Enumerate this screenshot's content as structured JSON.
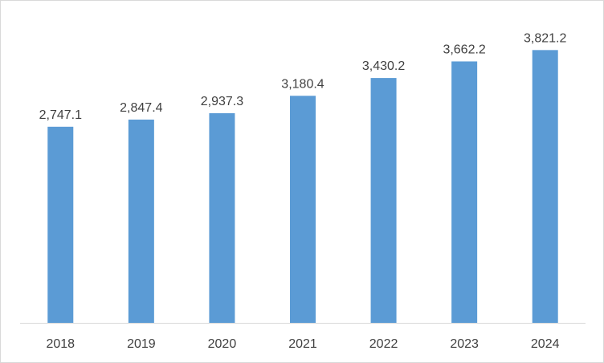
{
  "chart_data": {
    "type": "bar",
    "title": "",
    "xlabel": "",
    "ylabel": "",
    "categories": [
      "2018",
      "2019",
      "2020",
      "2021",
      "2022",
      "2023",
      "2024"
    ],
    "values": [
      2747.1,
      2847.4,
      2937.3,
      3180.4,
      3430.2,
      3662.2,
      3821.2
    ],
    "data_labels": [
      "2,747.1",
      "2,847.4",
      "2,937.3",
      "3,180.4",
      "3,430.2",
      "3,662.2",
      "3,821.2"
    ],
    "ylim": [
      0,
      4500
    ],
    "grid": false,
    "legend": "none",
    "colors": {
      "bar": "#5b9bd5",
      "axis": "#d9d9d9",
      "text": "#404040",
      "border": "#d9d9d9"
    }
  }
}
